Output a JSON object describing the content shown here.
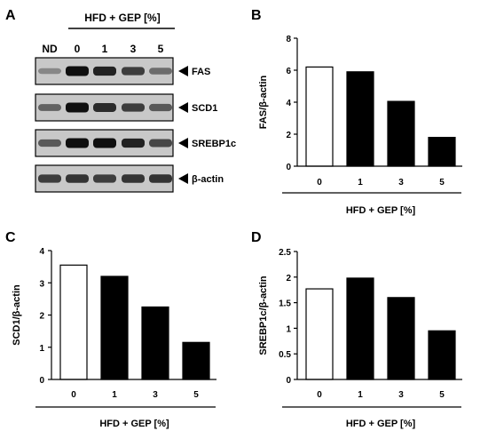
{
  "panel_a": {
    "letter": "A",
    "group_label": "HFD + GEP [%]",
    "lane_labels": [
      "ND",
      "0",
      "1",
      "3",
      "5"
    ],
    "blots": [
      {
        "name": "FAS",
        "intensity": [
          0.35,
          1.0,
          0.9,
          0.75,
          0.5
        ]
      },
      {
        "name": "SCD1",
        "intensity": [
          0.55,
          1.0,
          0.85,
          0.75,
          0.6
        ]
      },
      {
        "name": "SREBP1c",
        "intensity": [
          0.6,
          1.0,
          1.0,
          0.9,
          0.7
        ]
      },
      {
        "name": "β-actin",
        "intensity": [
          0.75,
          0.8,
          0.75,
          0.8,
          0.8
        ]
      }
    ]
  },
  "chart_data": [
    {
      "panel": "B",
      "type": "bar",
      "categories": [
        "0",
        "1",
        "3",
        "5"
      ],
      "values": [
        6.2,
        5.9,
        4.05,
        1.8
      ],
      "bar_colors": [
        "#ffffff",
        "#000000",
        "#000000",
        "#000000"
      ],
      "ylabel": "FAS/β-actin",
      "xlabel": "HFD + GEP [%]",
      "ylim": [
        0,
        8
      ],
      "yticks": [
        "0",
        "2",
        "4",
        "6",
        "8"
      ],
      "grid": false
    },
    {
      "panel": "C",
      "type": "bar",
      "categories": [
        "0",
        "1",
        "3",
        "5"
      ],
      "values": [
        3.55,
        3.2,
        2.25,
        1.15
      ],
      "bar_colors": [
        "#ffffff",
        "#000000",
        "#000000",
        "#000000"
      ],
      "ylabel": "SCD1/β-actin",
      "xlabel": "HFD + GEP [%]",
      "ylim": [
        0,
        4
      ],
      "yticks": [
        "0",
        "1",
        "2",
        "3",
        "4"
      ],
      "grid": false
    },
    {
      "panel": "D",
      "type": "bar",
      "categories": [
        "0",
        "1",
        "3",
        "5"
      ],
      "values": [
        1.77,
        1.98,
        1.6,
        0.95
      ],
      "bar_colors": [
        "#ffffff",
        "#000000",
        "#000000",
        "#000000"
      ],
      "ylabel": "SREBP1c/β-actin",
      "xlabel": "HFD + GEP [%]",
      "ylim": [
        0,
        2.5
      ],
      "yticks": [
        "0",
        "0.5",
        "1",
        "1.5",
        "2",
        "2.5"
      ],
      "grid": false
    }
  ]
}
